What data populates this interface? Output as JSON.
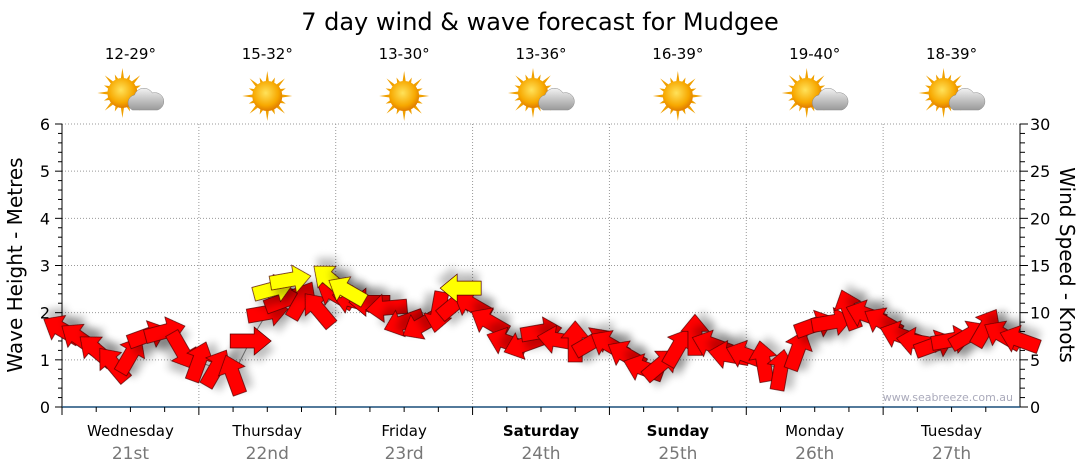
{
  "chart_data": {
    "type": "scatter",
    "title": "7 day wind & wave forecast for Mudgee",
    "ylabel_left": "Wave Height - Metres",
    "ylabel_right": "Wind Speed - Knots",
    "ylim_left": [
      0,
      6
    ],
    "ylim_right": [
      0,
      30
    ],
    "left_ticks": [
      "0",
      "1",
      "2",
      "3",
      "4",
      "5",
      "6"
    ],
    "right_ticks": [
      "0",
      "5",
      "10",
      "15",
      "20",
      "25",
      "30"
    ],
    "grid": true,
    "watermark": "www.seabreeze.com.au",
    "days": [
      {
        "name": "Wednesday",
        "date": "21st",
        "temp": "12-29°",
        "icon": "partly-cloudy-icon",
        "bold": false
      },
      {
        "name": "Thursday",
        "date": "22nd",
        "temp": "15-32°",
        "icon": "sunny-icon",
        "bold": false
      },
      {
        "name": "Friday",
        "date": "23rd",
        "temp": "13-30°",
        "icon": "sunny-icon",
        "bold": false
      },
      {
        "name": "Saturday",
        "date": "24th",
        "temp": "13-36°",
        "icon": "partly-cloudy-icon",
        "bold": true
      },
      {
        "name": "Sunday",
        "date": "25th",
        "temp": "16-39°",
        "icon": "sunny-icon",
        "bold": true
      },
      {
        "name": "Monday",
        "date": "26th",
        "temp": "19-40°",
        "icon": "partly-cloudy-icon",
        "bold": false
      },
      {
        "name": "Tuesday",
        "date": "27th",
        "temp": "18-39°",
        "icon": "partly-cloudy-icon",
        "bold": false
      }
    ],
    "wind_series": {
      "name": "wind",
      "color": "#ff0000",
      "hours": [
        0,
        3,
        6,
        9,
        12,
        15,
        18,
        21,
        24,
        27,
        30,
        33,
        36,
        39,
        42,
        45,
        48,
        51,
        54,
        57,
        60,
        63,
        66,
        69,
        72,
        75,
        78,
        81,
        84,
        87,
        90,
        93,
        96,
        99,
        102,
        105,
        108,
        111,
        114,
        117,
        120,
        123,
        126,
        129,
        132,
        135,
        138,
        141,
        144,
        147,
        150,
        153,
        156,
        159,
        162,
        165,
        168
      ],
      "knots": [
        8.2,
        7.3,
        6.0,
        4.5,
        5.5,
        7.6,
        8.0,
        6.0,
        4.8,
        4.1,
        3.4,
        7.0,
        10.0,
        11.3,
        11.3,
        10.3,
        11.9,
        11.3,
        11.1,
        10.5,
        9.0,
        8.7,
        10.1,
        11.0,
        10.8,
        9.0,
        6.9,
        6.6,
        8.0,
        7.1,
        6.9,
        6.9,
        6.6,
        5.5,
        4.1,
        4.5,
        6.3,
        7.6,
        6.6,
        5.5,
        5.5,
        4.8,
        3.9,
        6.0,
        8.7,
        9.0,
        10.3,
        9.8,
        9.0,
        7.6,
        6.9,
        6.6,
        7.1,
        7.6,
        8.4,
        7.6,
        7.1
      ],
      "arrow_angle_deg": [
        -150,
        -145,
        -140,
        -130,
        -60,
        -20,
        -15,
        60,
        -70,
        -60,
        -110,
        0,
        -10,
        -20,
        -60,
        -130,
        -150,
        -165,
        180,
        175,
        160,
        150,
        100,
        -40,
        -150,
        -150,
        -160,
        160,
        -10,
        -170,
        -90,
        -30,
        -150,
        -150,
        -160,
        -40,
        -60,
        -90,
        -160,
        -170,
        -160,
        -100,
        -80,
        -70,
        -20,
        -10,
        -110,
        -160,
        -150,
        -160,
        -170,
        -20,
        -10,
        -30,
        -60,
        -150,
        -160
      ]
    },
    "gust_series": {
      "name": "gusts",
      "color": "#ffff00",
      "hours": [
        37,
        40,
        47,
        50,
        70
      ],
      "knots": [
        12.5,
        13.5,
        13.5,
        12.3,
        12.6
      ],
      "arrow_angle_deg": [
        -15,
        -10,
        -140,
        -150,
        180
      ]
    }
  }
}
